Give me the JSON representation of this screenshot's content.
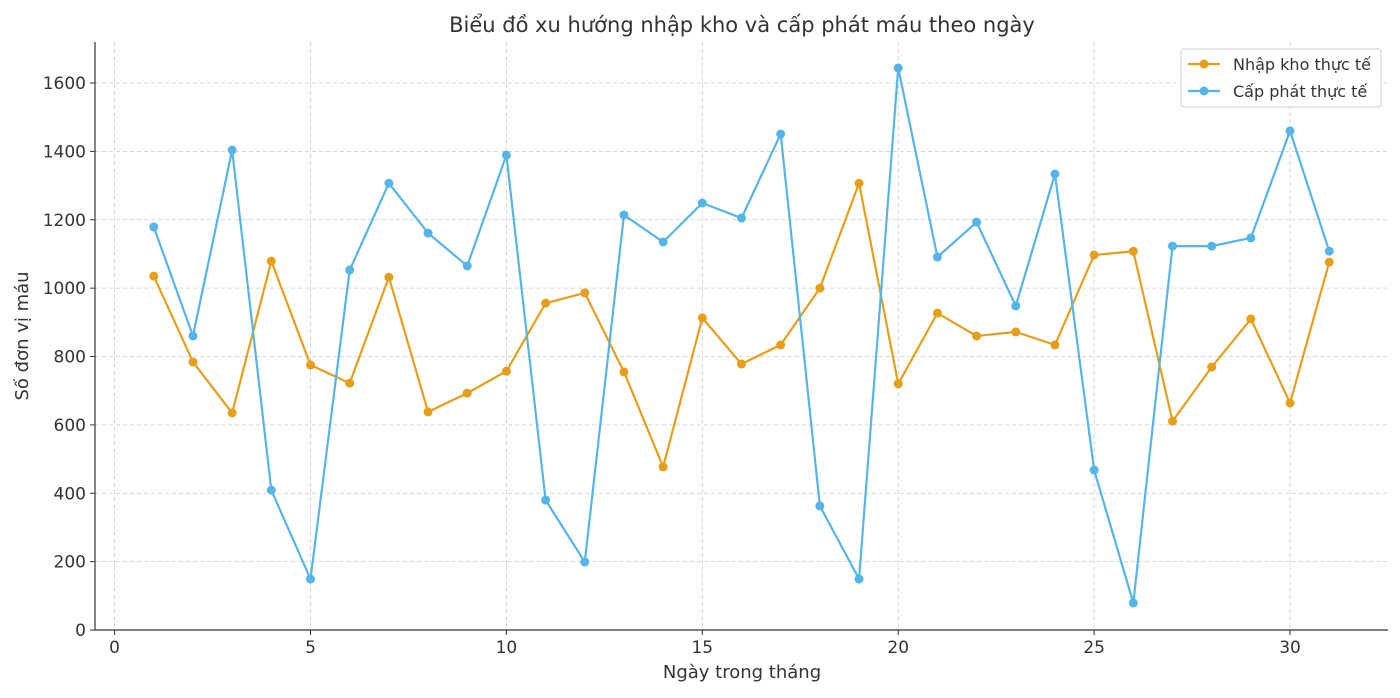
{
  "chart_data": {
    "type": "line",
    "title": "Biểu đồ xu hướng nhập kho và cấp phát máu theo ngày",
    "xlabel": "Ngày trong tháng",
    "ylabel": "Số đơn vị máu",
    "xlim": [
      -0.5,
      32.5
    ],
    "ylim": [
      0,
      1720
    ],
    "xticks": [
      0,
      5,
      10,
      15,
      20,
      25,
      30
    ],
    "yticks": [
      0,
      200,
      400,
      600,
      800,
      1000,
      1200,
      1400,
      1600
    ],
    "grid": true,
    "legend_position": "top-right",
    "x": [
      1,
      2,
      3,
      4,
      5,
      6,
      7,
      8,
      9,
      10,
      11,
      12,
      13,
      14,
      15,
      16,
      17,
      18,
      19,
      20,
      21,
      22,
      23,
      24,
      25,
      26,
      27,
      28,
      29,
      30,
      31
    ],
    "series": [
      {
        "name": "Nhập kho thực tế",
        "color": "#E69F1A",
        "values": [
          1035,
          784,
          635,
          1079,
          775,
          722,
          1032,
          638,
          693,
          757,
          956,
          986,
          755,
          477,
          913,
          778,
          834,
          1000,
          1307,
          720,
          927,
          860,
          872,
          834,
          1097,
          1108,
          611,
          769,
          910,
          664,
          1076
        ]
      },
      {
        "name": "Cấp phát thực tế",
        "color": "#56B4E9",
        "values": [
          1179,
          860,
          1404,
          409,
          149,
          1053,
          1307,
          1161,
          1065,
          1389,
          380,
          199,
          1214,
          1135,
          1249,
          1205,
          1451,
          363,
          149,
          1644,
          1091,
          1193,
          948,
          1334,
          468,
          79,
          1123,
          1123,
          1147,
          1460,
          1108
        ]
      }
    ]
  }
}
